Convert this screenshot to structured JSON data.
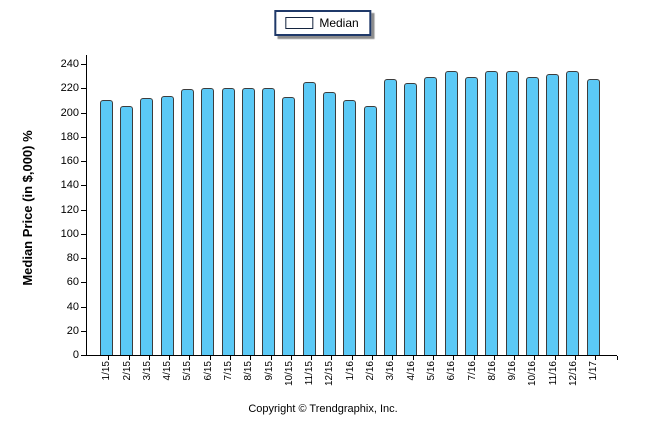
{
  "legend": {
    "label": "Median"
  },
  "footer": {
    "copyright": "Copyright © Trendgraphix, Inc."
  },
  "colors": {
    "bar_fill": "#5BC9F6",
    "bar_border": "#3D3D3D",
    "legend_border": "#1F3969",
    "axis": "#000000",
    "background": "#FFFFFF"
  },
  "chart_data": {
    "type": "bar",
    "title": "",
    "xlabel": "",
    "ylabel": "Median Price (in $,000) %",
    "categories": [
      "1/15",
      "2/15",
      "3/15",
      "4/15",
      "5/15",
      "6/15",
      "7/15",
      "8/15",
      "9/15",
      "10/15",
      "11/15",
      "12/15",
      "1/16",
      "2/16",
      "3/16",
      "4/16",
      "5/16",
      "6/16",
      "7/16",
      "8/16",
      "9/16",
      "10/16",
      "11/16",
      "12/16",
      "1/17"
    ],
    "series": [
      {
        "name": "Median",
        "values": [
          210,
          205,
          212,
          214,
          219,
          220,
          220,
          220,
          220,
          213,
          225,
          217,
          210,
          205,
          228,
          224,
          229,
          234,
          229,
          234,
          234,
          229,
          232,
          234,
          228
        ]
      }
    ],
    "ylim": [
      0,
      240
    ],
    "yticks": [
      0,
      20,
      40,
      60,
      80,
      100,
      120,
      140,
      160,
      180,
      200,
      220,
      240
    ],
    "grid": false,
    "legend_position": "top-center"
  }
}
